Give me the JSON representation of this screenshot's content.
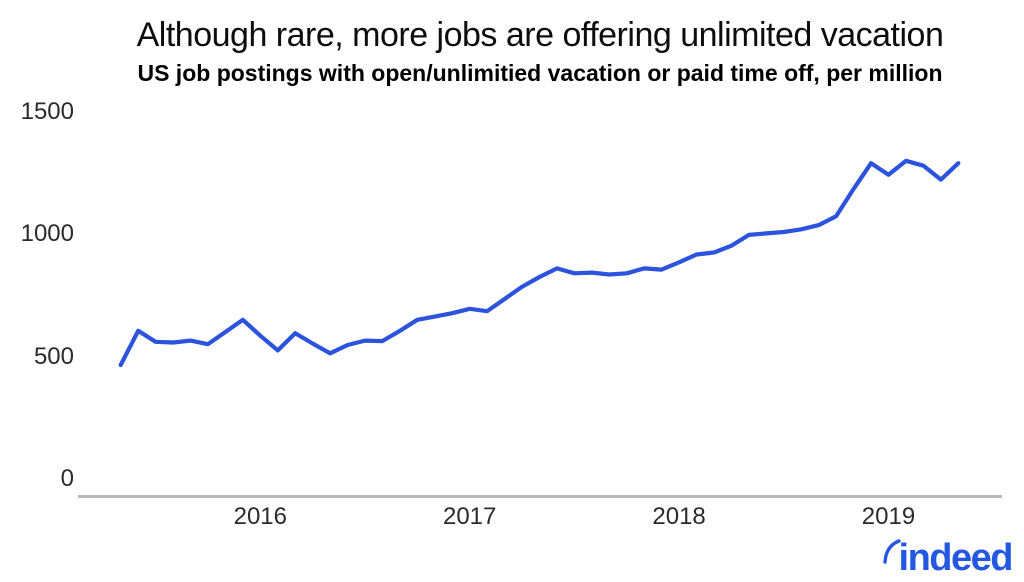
{
  "branding": {
    "logo_text": "indeed",
    "logo_color": "#2458e0"
  },
  "chart_data": {
    "type": "line",
    "title": "Although rare, more jobs are offering unlimited vacation",
    "subtitle": "US job postings with open/unlimitied vacation or paid time off, per million",
    "x": [
      "May 2015",
      "Jun 2015",
      "Jul 2015",
      "Aug 2015",
      "Sep 2015",
      "Oct 2015",
      "Nov 2015",
      "Dec 2015",
      "Jan 2016",
      "Feb 2016",
      "Mar 2016",
      "Apr 2016",
      "May 2016",
      "Jun 2016",
      "Jul 2016",
      "Aug 2016",
      "Sep 2016",
      "Oct 2016",
      "Nov 2016",
      "Dec 2016",
      "Jan 2017",
      "Feb 2017",
      "Mar 2017",
      "Apr 2017",
      "May 2017",
      "Jun 2017",
      "Jul 2017",
      "Aug 2017",
      "Sep 2017",
      "Oct 2017",
      "Nov 2017",
      "Dec 2017",
      "Jan 2018",
      "Feb 2018",
      "Mar 2018",
      "Apr 2018",
      "May 2018",
      "Jun 2018",
      "Jul 2018",
      "Aug 2018",
      "Sep 2018",
      "Oct 2018",
      "Nov 2018",
      "Dec 2018",
      "Jan 2019",
      "Feb 2019",
      "Mar 2019",
      "Apr 2019",
      "May 2019"
    ],
    "values": [
      470,
      610,
      565,
      562,
      570,
      555,
      605,
      655,
      590,
      530,
      600,
      558,
      518,
      552,
      570,
      568,
      610,
      655,
      668,
      682,
      700,
      690,
      740,
      790,
      830,
      865,
      845,
      848,
      840,
      845,
      865,
      860,
      890,
      922,
      930,
      958,
      1002,
      1008,
      1014,
      1025,
      1042,
      1078,
      1190,
      1295,
      1248,
      1305,
      1285,
      1228,
      1295
    ],
    "series_name": "US job postings with open/unlimited vacation or paid time off, per million",
    "y_ticks": [
      0,
      500,
      1000,
      1500
    ],
    "y_tick_labels": [
      "0",
      "500",
      "1000",
      "1500"
    ],
    "x_tick_labels": [
      "2016",
      "2017",
      "2018",
      "2019"
    ],
    "x_tick_month_index": [
      8,
      20,
      32,
      44
    ],
    "ylim": [
      0,
      1500
    ],
    "grid": false,
    "legend": "none",
    "line_color": "#2b53dc",
    "axis_line_color": "#b9b9b9",
    "tick_text_color": "#2b2b2b"
  }
}
